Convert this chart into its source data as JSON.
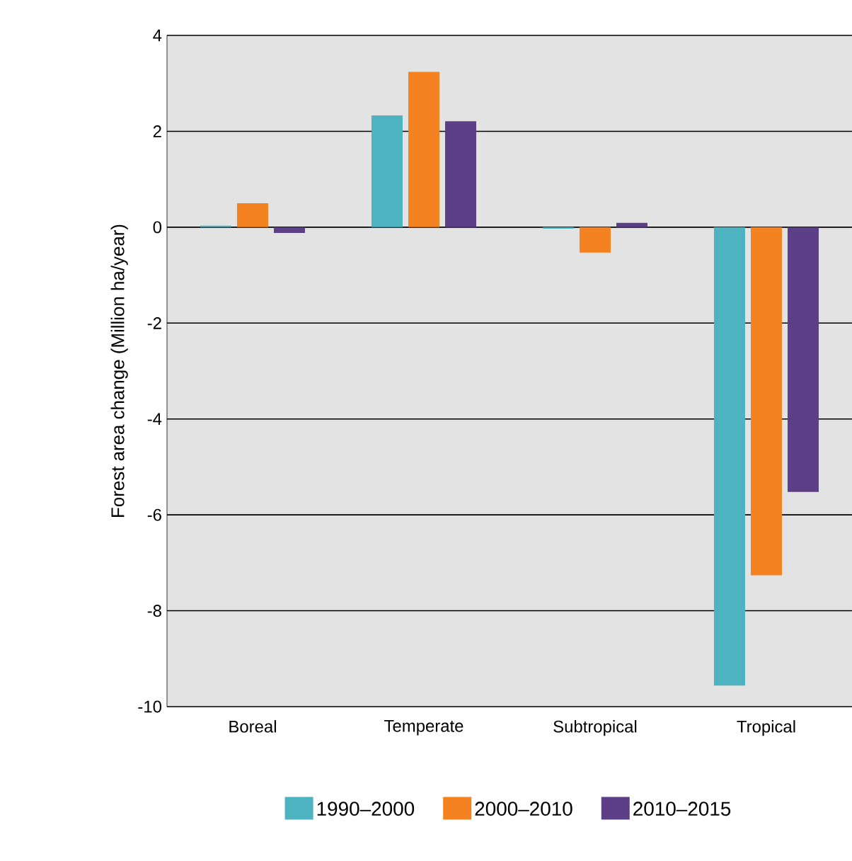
{
  "chart_data": {
    "type": "bar",
    "ylabel": "Forest area change (Million ha/year)",
    "categories": [
      "Boreal",
      "Temperate",
      "Subtropical",
      "Tropical"
    ],
    "series": [
      {
        "name": "1990–2000",
        "color": "#4db3c0",
        "values": [
          0.03,
          2.33,
          -0.03,
          -9.56
        ]
      },
      {
        "name": "2000–2010",
        "color": "#f58220",
        "values": [
          0.5,
          3.24,
          -0.53,
          -7.26
        ]
      },
      {
        "name": "2010–2015",
        "color": "#5c3f86",
        "values": [
          -0.12,
          2.21,
          0.09,
          -5.52
        ]
      }
    ],
    "ylim": [
      -10,
      4
    ],
    "yticks": [
      -10,
      -8,
      -6,
      -4,
      -2,
      0,
      2,
      4
    ],
    "grid": "y",
    "legend": "bottom"
  }
}
